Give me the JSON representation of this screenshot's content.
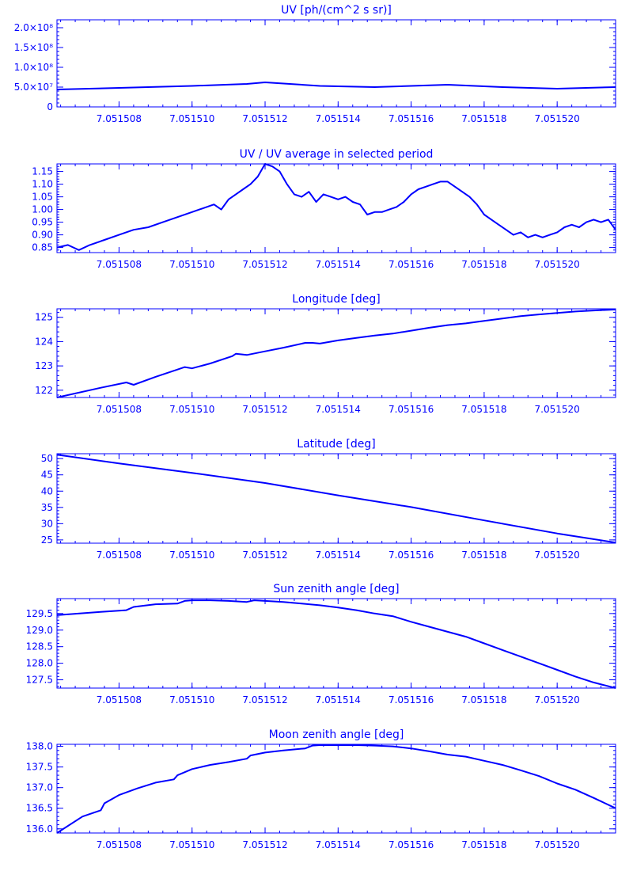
{
  "colors": {
    "axis": "#0000ff",
    "line": "#0000ff",
    "background": "#ffffff"
  },
  "chart_data": [
    {
      "type": "line",
      "title": "UV [ph/(cm^2 s sr)]",
      "xlim": [
        7.0515063,
        7.0515216
      ],
      "ylim": [
        0,
        220000000.0
      ],
      "x_ticks": [
        "7.051508",
        "7.051510",
        "7.051512",
        "7.051514",
        "7.051516",
        "7.051518",
        "7.051520"
      ],
      "x_tick_values": [
        7.051508,
        7.05151,
        7.051512,
        7.051514,
        7.051516,
        7.051518,
        7.05152
      ],
      "y_ticks": [
        {
          "value": 0,
          "label": "0"
        },
        {
          "value": 50000000.0,
          "label": "5.0×10⁷"
        },
        {
          "value": 100000000.0,
          "label": "1.0×10⁸"
        },
        {
          "value": 150000000.0,
          "label": "1.5×10⁸"
        },
        {
          "value": 200000000.0,
          "label": "2.0×10⁸"
        }
      ],
      "series": [
        {
          "x": [
            7.0515063,
            7.051508,
            7.05151,
            7.0515115,
            7.051512,
            7.0515135,
            7.051515,
            7.051517,
            7.0515185,
            7.05152,
            7.0515216
          ],
          "y": [
            44000000.0,
            48000000.0,
            53000000.0,
            58000000.0,
            62000000.0,
            53000000.0,
            50000000.0,
            56000000.0,
            50000000.0,
            46000000.0,
            50000000.0
          ]
        }
      ]
    },
    {
      "type": "line",
      "title": "UV / UV average in selected period",
      "xlim": [
        7.0515063,
        7.0515216
      ],
      "ylim": [
        0.83,
        1.18
      ],
      "x_ticks": [
        "7.051508",
        "7.051510",
        "7.051512",
        "7.051514",
        "7.051516",
        "7.051518",
        "7.051520"
      ],
      "x_tick_values": [
        7.051508,
        7.05151,
        7.051512,
        7.051514,
        7.051516,
        7.051518,
        7.05152
      ],
      "y_ticks": [
        {
          "value": 0.85,
          "label": "0.85"
        },
        {
          "value": 0.9,
          "label": "0.90"
        },
        {
          "value": 0.95,
          "label": "0.95"
        },
        {
          "value": 1.0,
          "label": "1.00"
        },
        {
          "value": 1.05,
          "label": "1.05"
        },
        {
          "value": 1.1,
          "label": "1.10"
        },
        {
          "value": 1.15,
          "label": "1.15"
        }
      ],
      "series": [
        {
          "x": [
            7.0515063,
            7.0515066,
            7.0515069,
            7.0515072,
            7.0515076,
            7.051508,
            7.0515084,
            7.0515088,
            7.0515092,
            7.0515096,
            7.05151,
            7.0515102,
            7.0515104,
            7.0515106,
            7.0515108,
            7.051511,
            7.0515112,
            7.0515114,
            7.0515116,
            7.0515118,
            7.051512,
            7.0515122,
            7.0515124,
            7.0515126,
            7.0515128,
            7.051513,
            7.0515132,
            7.0515134,
            7.0515136,
            7.0515138,
            7.051514,
            7.0515142,
            7.0515144,
            7.0515146,
            7.0515148,
            7.051515,
            7.0515152,
            7.0515154,
            7.0515156,
            7.0515158,
            7.051516,
            7.0515162,
            7.0515164,
            7.0515166,
            7.0515168,
            7.051517,
            7.0515172,
            7.0515174,
            7.0515176,
            7.0515178,
            7.051518,
            7.0515182,
            7.0515184,
            7.0515186,
            7.0515188,
            7.051519,
            7.0515192,
            7.0515194,
            7.0515196,
            7.0515198,
            7.05152,
            7.0515202,
            7.0515204,
            7.0515206,
            7.0515208,
            7.051521,
            7.0515212,
            7.0515214,
            7.0515216
          ],
          "y": [
            0.85,
            0.86,
            0.84,
            0.86,
            0.88,
            0.9,
            0.92,
            0.93,
            0.95,
            0.97,
            0.99,
            1.0,
            1.01,
            1.02,
            1.0,
            1.04,
            1.06,
            1.08,
            1.1,
            1.13,
            1.18,
            1.17,
            1.15,
            1.1,
            1.06,
            1.05,
            1.07,
            1.03,
            1.06,
            1.05,
            1.04,
            1.05,
            1.03,
            1.02,
            0.98,
            0.99,
            0.99,
            1.0,
            1.01,
            1.03,
            1.06,
            1.08,
            1.09,
            1.1,
            1.11,
            1.11,
            1.09,
            1.07,
            1.05,
            1.02,
            0.98,
            0.96,
            0.94,
            0.92,
            0.9,
            0.91,
            0.89,
            0.9,
            0.89,
            0.9,
            0.91,
            0.93,
            0.94,
            0.93,
            0.95,
            0.96,
            0.95,
            0.96,
            0.92
          ]
        }
      ]
    },
    {
      "type": "line",
      "title": "Longitude [deg]",
      "xlim": [
        7.0515063,
        7.0515216
      ],
      "ylim": [
        121.7,
        125.35
      ],
      "x_ticks": [
        "7.051508",
        "7.051510",
        "7.051512",
        "7.051514",
        "7.051516",
        "7.051518",
        "7.051520"
      ],
      "x_tick_values": [
        7.051508,
        7.05151,
        7.051512,
        7.051514,
        7.051516,
        7.051518,
        7.05152
      ],
      "y_ticks": [
        {
          "value": 122,
          "label": "122"
        },
        {
          "value": 123,
          "label": "123"
        },
        {
          "value": 124,
          "label": "124"
        },
        {
          "value": 125,
          "label": "125"
        }
      ],
      "series": [
        {
          "x": [
            7.0515063,
            7.0515075,
            7.0515082,
            7.0515084,
            7.051509,
            7.0515096,
            7.0515098,
            7.05151,
            7.0515105,
            7.0515111,
            7.0515112,
            7.0515115,
            7.051512,
            7.0515125,
            7.0515131,
            7.0515133,
            7.0515135,
            7.051514,
            7.0515145,
            7.051515,
            7.0515155,
            7.051516,
            7.0515165,
            7.051517,
            7.0515175,
            7.051518,
            7.0515185,
            7.051519,
            7.0515195,
            7.05152,
            7.0515205,
            7.051521,
            7.0515216
          ],
          "y": [
            121.7,
            122.1,
            122.32,
            122.22,
            122.55,
            122.85,
            122.95,
            122.9,
            123.1,
            123.4,
            123.5,
            123.45,
            123.6,
            123.75,
            123.95,
            123.95,
            123.92,
            124.05,
            124.15,
            124.25,
            124.33,
            124.45,
            124.57,
            124.68,
            124.75,
            124.85,
            124.95,
            125.05,
            125.12,
            125.18,
            125.24,
            125.28,
            125.32
          ]
        }
      ]
    },
    {
      "type": "line",
      "title": "Latitude [deg]",
      "xlim": [
        7.0515063,
        7.0515216
      ],
      "ylim": [
        24,
        51.5
      ],
      "x_ticks": [
        "7.051508",
        "7.051510",
        "7.051512",
        "7.051514",
        "7.051516",
        "7.051518",
        "7.051520"
      ],
      "x_tick_values": [
        7.051508,
        7.05151,
        7.051512,
        7.051514,
        7.051516,
        7.051518,
        7.05152
      ],
      "y_ticks": [
        {
          "value": 25,
          "label": "25"
        },
        {
          "value": 30,
          "label": "30"
        },
        {
          "value": 35,
          "label": "35"
        },
        {
          "value": 40,
          "label": "40"
        },
        {
          "value": 45,
          "label": "45"
        },
        {
          "value": 50,
          "label": "50"
        }
      ],
      "series": [
        {
          "x": [
            7.0515063,
            7.051508,
            7.05151,
            7.051512,
            7.051514,
            7.051516,
            7.051518,
            7.05152,
            7.0515216
          ],
          "y": [
            51.2,
            48.5,
            45.6,
            42.5,
            38.7,
            35.1,
            31.0,
            27.0,
            24.2
          ]
        }
      ]
    },
    {
      "type": "line",
      "title": "Sun zenith angle [deg]",
      "xlim": [
        7.0515063,
        7.0515216
      ],
      "ylim": [
        127.25,
        129.95
      ],
      "x_ticks": [
        "7.051508",
        "7.051510",
        "7.051512",
        "7.051514",
        "7.051516",
        "7.051518",
        "7.051520"
      ],
      "x_tick_values": [
        7.051508,
        7.05151,
        7.051512,
        7.051514,
        7.051516,
        7.051518,
        7.05152
      ],
      "y_ticks": [
        {
          "value": 127.5,
          "label": "127.5"
        },
        {
          "value": 128.0,
          "label": "128.0"
        },
        {
          "value": 128.5,
          "label": "128.5"
        },
        {
          "value": 129.0,
          "label": "129.0"
        },
        {
          "value": 129.5,
          "label": "129.5"
        }
      ],
      "series": [
        {
          "x": [
            7.0515063,
            7.0515075,
            7.0515082,
            7.0515084,
            7.051509,
            7.0515096,
            7.0515098,
            7.05151,
            7.0515105,
            7.051511,
            7.0515115,
            7.0515117,
            7.051512,
            7.0515125,
            7.051513,
            7.0515135,
            7.051514,
            7.0515145,
            7.051515,
            7.0515155,
            7.051516,
            7.0515165,
            7.051517,
            7.0515175,
            7.051518,
            7.0515185,
            7.051519,
            7.0515195,
            7.05152,
            7.0515205,
            7.051521,
            7.0515216
          ],
          "y": [
            129.45,
            129.55,
            129.6,
            129.7,
            129.78,
            129.8,
            129.88,
            129.9,
            129.9,
            129.88,
            129.85,
            129.9,
            129.88,
            129.85,
            129.8,
            129.75,
            129.68,
            129.6,
            129.5,
            129.42,
            129.25,
            129.1,
            128.95,
            128.8,
            128.6,
            128.4,
            128.2,
            128.0,
            127.8,
            127.6,
            127.42,
            127.25
          ]
        }
      ]
    },
    {
      "type": "line",
      "title": "Moon zenith angle [deg]",
      "xlim": [
        7.0515063,
        7.0515216
      ],
      "ylim": [
        135.9,
        138.05
      ],
      "x_ticks": [
        "7.051508",
        "7.051510",
        "7.051512",
        "7.051514",
        "7.051516",
        "7.051518",
        "7.051520"
      ],
      "x_tick_values": [
        7.051508,
        7.05151,
        7.051512,
        7.051514,
        7.051516,
        7.051518,
        7.05152
      ],
      "y_ticks": [
        {
          "value": 136.0,
          "label": "136.0"
        },
        {
          "value": 136.5,
          "label": "136.5"
        },
        {
          "value": 137.0,
          "label": "137.0"
        },
        {
          "value": 137.5,
          "label": "137.5"
        },
        {
          "value": 138.0,
          "label": "138.0"
        }
      ],
      "series": [
        {
          "x": [
            7.0515063,
            7.051507,
            7.0515075,
            7.0515076,
            7.051508,
            7.0515085,
            7.051509,
            7.0515095,
            7.0515096,
            7.05151,
            7.0515105,
            7.051511,
            7.0515115,
            7.0515116,
            7.051512,
            7.0515125,
            7.0515131,
            7.0515133,
            7.0515135,
            7.051514,
            7.0515145,
            7.051515,
            7.0515155,
            7.051516,
            7.0515165,
            7.051517,
            7.0515175,
            7.051518,
            7.0515185,
            7.051519,
            7.0515195,
            7.05152,
            7.0515205,
            7.051521,
            7.0515216
          ],
          "y": [
            135.9,
            136.3,
            136.45,
            136.62,
            136.82,
            136.98,
            137.12,
            137.2,
            137.3,
            137.45,
            137.55,
            137.62,
            137.7,
            137.78,
            137.85,
            137.9,
            137.95,
            138.02,
            138.03,
            138.03,
            138.03,
            138.02,
            138.0,
            137.95,
            137.88,
            137.8,
            137.75,
            137.65,
            137.55,
            137.42,
            137.28,
            137.1,
            136.95,
            136.75,
            136.5
          ]
        }
      ]
    }
  ]
}
